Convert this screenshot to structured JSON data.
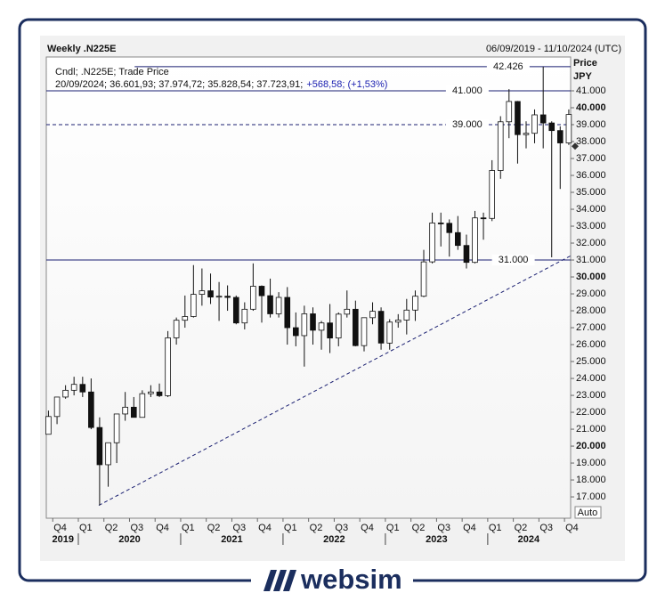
{
  "chart_data": {
    "type": "candlestick",
    "title": "Weekly .N225E",
    "date_range": "06/09/2019 - 11/10/2024 (UTC)",
    "info_line": "Cndl; .N225E; Trade Price",
    "quote_line": "20/09/2024; 36.601,93; 37.974,72; 35.828,54; 37.723,91;",
    "change_line": "+568,58; (+1,53%)",
    "axis_title": "Price",
    "axis_unit": "JPY",
    "scale_button": "Auto",
    "up_color": "#ffffff",
    "down_color": "#111111",
    "line_color": "#1a1f71",
    "x": [
      2019.708,
      2019.792,
      2019.875,
      2019.958,
      2020.042,
      2020.125,
      2020.208,
      2020.292,
      2020.375,
      2020.458,
      2020.542,
      2020.625,
      2020.708,
      2020.792,
      2020.875,
      2020.958,
      2021.042,
      2021.125,
      2021.208,
      2021.292,
      2021.375,
      2021.458,
      2021.542,
      2021.625,
      2021.708,
      2021.792,
      2021.875,
      2021.958,
      2022.042,
      2022.125,
      2022.208,
      2022.292,
      2022.375,
      2022.458,
      2022.542,
      2022.625,
      2022.708,
      2022.792,
      2022.875,
      2022.958,
      2023.042,
      2023.125,
      2023.208,
      2023.292,
      2023.375,
      2023.458,
      2023.542,
      2023.625,
      2023.708,
      2023.792,
      2023.875,
      2023.958,
      2024.042,
      2024.125,
      2024.208,
      2024.292,
      2024.375,
      2024.458,
      2024.542,
      2024.625,
      2024.708,
      2024.792
    ],
    "open": [
      20700,
      21750,
      22900,
      23300,
      23650,
      23200,
      21100,
      18900,
      20200,
      21900,
      22300,
      21700,
      23100,
      23200,
      22980,
      26400,
      27440,
      27660,
      28970,
      29180,
      28810,
      28860,
      28790,
      27280,
      28090,
      29450,
      28890,
      27820,
      28790,
      27000,
      26530,
      27820,
      26850,
      27280,
      26390,
      27800,
      28090,
      25940,
      27590,
      27970,
      26090,
      27330,
      27450,
      28040,
      28860,
      30890,
      33190,
      33170,
      32620,
      31860,
      30860,
      33490,
      33460,
      36290,
      39170,
      40370,
      38410,
      38490,
      39580,
      39100,
      38650,
      37920
    ],
    "high": [
      22100,
      22900,
      23600,
      24100,
      24100,
      24000,
      21700,
      20200,
      21900,
      23200,
      22900,
      23300,
      23600,
      23700,
      26800,
      27600,
      28900,
      30700,
      30500,
      30200,
      29700,
      29500,
      28900,
      28500,
      30800,
      29500,
      29900,
      29100,
      29400,
      27900,
      28300,
      28200,
      27400,
      28400,
      27900,
      29200,
      28600,
      27600,
      28500,
      28200,
      27500,
      27800,
      28700,
      29200,
      31600,
      33800,
      33800,
      33400,
      33600,
      32500,
      33900,
      33800,
      36900,
      39500,
      41100,
      40400,
      39200,
      39900,
      42426,
      39200,
      38900,
      39900
    ],
    "low": [
      20700,
      21300,
      22800,
      23000,
      22900,
      21000,
      16500,
      17600,
      19000,
      21500,
      21700,
      21700,
      22900,
      22900,
      22900,
      26000,
      27000,
      27600,
      28300,
      28400,
      27400,
      28000,
      27200,
      26900,
      28000,
      27300,
      27600,
      27600,
      26000,
      25900,
      24700,
      26000,
      25700,
      25500,
      25900,
      27600,
      25900,
      25600,
      27200,
      25700,
      25700,
      27000,
      26600,
      27400,
      28800,
      30800,
      31800,
      31200,
      31600,
      30500,
      30800,
      32200,
      33300,
      35800,
      38200,
      36700,
      37600,
      37900,
      37600,
      31156,
      35200,
      37800
    ],
    "close": [
      21750,
      22900,
      23300,
      23650,
      23200,
      21100,
      18900,
      20200,
      21900,
      22300,
      21700,
      23100,
      23200,
      22980,
      26400,
      27440,
      27660,
      28970,
      29180,
      28810,
      28860,
      28790,
      27280,
      28090,
      29450,
      28890,
      27820,
      28790,
      27000,
      26530,
      27820,
      26850,
      27280,
      26390,
      27800,
      28090,
      25940,
      27590,
      27970,
      26090,
      27330,
      27450,
      28040,
      28860,
      30890,
      33190,
      33170,
      32620,
      31860,
      30860,
      33490,
      33460,
      36290,
      39170,
      40370,
      38410,
      38490,
      39580,
      39100,
      38650,
      37920,
      39600
    ],
    "xlim": [
      2019.687,
      2024.81
    ],
    "xticks": [
      {
        "value": 2019.75,
        "label": "Q4"
      },
      {
        "value": 2020.0,
        "label": "Q1"
      },
      {
        "value": 2020.25,
        "label": "Q2"
      },
      {
        "value": 2020.5,
        "label": "Q3"
      },
      {
        "value": 2020.75,
        "label": "Q4"
      },
      {
        "value": 2021.0,
        "label": "Q1"
      },
      {
        "value": 2021.25,
        "label": "Q2"
      },
      {
        "value": 2021.5,
        "label": "Q3"
      },
      {
        "value": 2021.75,
        "label": "Q4"
      },
      {
        "value": 2022.0,
        "label": "Q1"
      },
      {
        "value": 2022.25,
        "label": "Q2"
      },
      {
        "value": 2022.5,
        "label": "Q3"
      },
      {
        "value": 2022.75,
        "label": "Q4"
      },
      {
        "value": 2023.0,
        "label": "Q1"
      },
      {
        "value": 2023.25,
        "label": "Q2"
      },
      {
        "value": 2023.5,
        "label": "Q3"
      },
      {
        "value": 2023.75,
        "label": "Q4"
      },
      {
        "value": 2024.0,
        "label": "Q1"
      },
      {
        "value": 2024.25,
        "label": "Q2"
      },
      {
        "value": 2024.5,
        "label": "Q3"
      },
      {
        "value": 2024.75,
        "label": "Q4"
      }
    ],
    "year_labels": [
      {
        "value": 2019.85,
        "label": "2019"
      },
      {
        "value": 2020.5,
        "label": "2020"
      },
      {
        "value": 2021.5,
        "label": "2021"
      },
      {
        "value": 2022.5,
        "label": "2022"
      },
      {
        "value": 2023.5,
        "label": "2023"
      },
      {
        "value": 2024.4,
        "label": "2024"
      }
    ],
    "year_separators": [
      2020,
      2021,
      2022,
      2023,
      2024
    ],
    "ylim": [
      15740,
      43000
    ],
    "yticks": [
      {
        "value": 17000,
        "label": "17.000"
      },
      {
        "value": 18000,
        "label": "18.000"
      },
      {
        "value": 19000,
        "label": "19.000"
      },
      {
        "value": 20000,
        "label": "20.000"
      },
      {
        "value": 21000,
        "label": "21.000"
      },
      {
        "value": 22000,
        "label": "22.000"
      },
      {
        "value": 23000,
        "label": "23.000"
      },
      {
        "value": 24000,
        "label": "24.000"
      },
      {
        "value": 25000,
        "label": "25.000"
      },
      {
        "value": 26000,
        "label": "26.000"
      },
      {
        "value": 27000,
        "label": "27.000"
      },
      {
        "value": 28000,
        "label": "28.000"
      },
      {
        "value": 29000,
        "label": "29.000"
      },
      {
        "value": 30000,
        "label": "30.000"
      },
      {
        "value": 31000,
        "label": "31.000"
      },
      {
        "value": 32000,
        "label": "32.000"
      },
      {
        "value": 33000,
        "label": "33.000"
      },
      {
        "value": 34000,
        "label": "34.000"
      },
      {
        "value": 35000,
        "label": "35.000"
      },
      {
        "value": 36000,
        "label": "36.000"
      },
      {
        "value": 37000,
        "label": "37.000"
      },
      {
        "value": 38000,
        "label": "38.000"
      },
      {
        "value": 39000,
        "label": "39.000"
      },
      {
        "value": 40000,
        "label": "40.000"
      },
      {
        "value": 41000,
        "label": "41.000"
      }
    ],
    "grid": false,
    "hlines": [
      {
        "value": 42426,
        "label": "42.426",
        "style": "solid",
        "from": 2020.55,
        "label_at": 2024.2
      },
      {
        "value": 41000,
        "label": "41.000",
        "style": "solid",
        "from": 2019.687,
        "label_at": 2023.8
      },
      {
        "value": 39000,
        "label": "39.000",
        "style": "dashed",
        "from": 2019.687,
        "label_at": 2023.8
      },
      {
        "value": 31000,
        "label": "31.000",
        "style": "solid",
        "from": 2019.687,
        "label_at": 2024.25
      }
    ],
    "trendline": {
      "x": [
        2020.2,
        2024.81
      ],
      "y": [
        16500,
        31250
      ]
    },
    "last_price": 37723.91
  },
  "branding": {
    "name": "websim"
  }
}
